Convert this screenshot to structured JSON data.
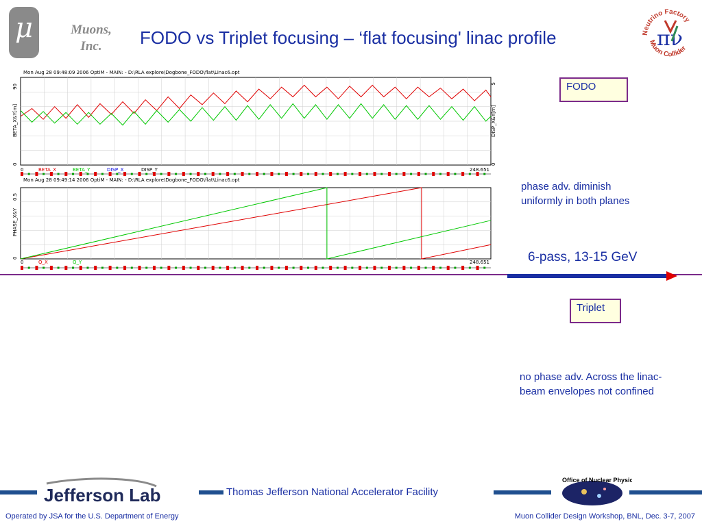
{
  "header": {
    "mu_symbol": "μ",
    "company_line1": "Muons,",
    "company_line2": "Inc.",
    "title": "FODO vs Triplet focusing – ‘flat focusing' linac profile",
    "logo_text_top": "Neutrino Factory",
    "logo_text_bottom": "Muon Collider",
    "logo_symbol": "πν"
  },
  "plots": {
    "top": {
      "header": "Mon Aug 28 09:48:09 2006    OptiM - MAIN: - D:\\RLA explore\\Dogbone_FODO\\flat\\Linac6.opt",
      "y_left_label": "BETA_X&Y[m]",
      "y_right_label": "DISP_X&Y[m]",
      "y_left_max": "90",
      "y_right_max": "5",
      "y_min": "0",
      "x_start": "0",
      "x_end": "248.651",
      "legend": [
        {
          "label": "BETA_X",
          "color": "#e00000"
        },
        {
          "label": "BETA_Y",
          "color": "#00c800"
        },
        {
          "label": "DISP_X",
          "color": "#0000e0"
        },
        {
          "label": "DISP_Y",
          "color": "#000000"
        }
      ]
    },
    "bottom": {
      "header": "Mon Aug 28 09:49:14 2006    OptiM - MAIN: - D:\\RLA explore\\Dogbone_FODO\\flat\\Linac6.opt",
      "y_left_label": "PHASE_X&Y",
      "y_left_max": "0.5",
      "y_min": "0",
      "x_start": "0",
      "x_end": "248.651",
      "legend": [
        {
          "label": "Q_X",
          "color": "#e00000"
        },
        {
          "label": "Q_Y",
          "color": "#00c800"
        }
      ]
    }
  },
  "chart_data": [
    {
      "type": "line",
      "title": "Mon Aug 28 09:48:09 2006    OptiM - MAIN: - D:\\RLA explore\\Dogbone_FODO\\flat\\Linac6.opt",
      "xlabel": "",
      "ylabel": "BETA_X&Y[m]",
      "y2label": "DISP_X&Y[m]",
      "xlim": [
        0,
        248.651
      ],
      "ylim": [
        0,
        90
      ],
      "y2lim": [
        0,
        5
      ],
      "series": [
        {
          "name": "BETA_X",
          "color": "#e00000",
          "x": [
            0,
            6,
            12,
            18,
            24,
            30,
            36,
            42,
            48,
            54,
            60,
            66,
            72,
            78,
            84,
            90,
            96,
            102,
            108,
            114,
            120,
            126,
            132,
            138,
            144,
            150,
            156,
            162,
            168,
            174,
            180,
            186,
            192,
            198,
            204,
            210,
            216,
            222,
            228,
            234,
            240,
            246,
            248.651
          ],
          "values": [
            50,
            58,
            47,
            60,
            48,
            62,
            49,
            63,
            52,
            65,
            53,
            67,
            56,
            70,
            58,
            72,
            62,
            74,
            63,
            76,
            65,
            78,
            68,
            80,
            70,
            82,
            70,
            80,
            68,
            81,
            70,
            82,
            70,
            80,
            68,
            80,
            70,
            79,
            68,
            78,
            66,
            77,
            70
          ]
        },
        {
          "name": "BETA_Y",
          "color": "#00c800",
          "x": [
            0,
            6,
            12,
            18,
            24,
            30,
            36,
            42,
            48,
            54,
            60,
            66,
            72,
            78,
            84,
            90,
            96,
            102,
            108,
            114,
            120,
            126,
            132,
            138,
            144,
            150,
            156,
            162,
            168,
            174,
            180,
            186,
            192,
            198,
            204,
            210,
            216,
            222,
            228,
            234,
            240,
            246,
            248.651
          ],
          "values": [
            56,
            44,
            55,
            43,
            54,
            42,
            54,
            42,
            53,
            41,
            55,
            42,
            56,
            44,
            57,
            45,
            59,
            46,
            60,
            46,
            61,
            47,
            62,
            48,
            63,
            48,
            62,
            47,
            62,
            48,
            63,
            48,
            62,
            47,
            61,
            47,
            61,
            47,
            60,
            46,
            60,
            45,
            50
          ]
        }
      ]
    },
    {
      "type": "line",
      "title": "Mon Aug 28 09:49:14 2006    OptiM - MAIN: - D:\\RLA explore\\Dogbone_FODO\\flat\\Linac6.opt",
      "xlabel": "",
      "ylabel": "PHASE_X&Y",
      "xlim": [
        0,
        248.651
      ],
      "ylim": [
        0,
        0.5
      ],
      "series": [
        {
          "name": "Q_X",
          "color": "#e00000",
          "x": [
            0,
            212,
            212,
            248.651
          ],
          "values": [
            0,
            0.5,
            0,
            0.1
          ]
        },
        {
          "name": "Q_Y",
          "color": "#00c800",
          "x": [
            0,
            162,
            162,
            248.651
          ],
          "values": [
            0,
            0.5,
            0,
            0.27
          ]
        }
      ]
    }
  ],
  "annotations": {
    "fodo_box": "FODO",
    "fodo_note_line1": "phase adv. diminish",
    "fodo_note_line2": "uniformly in both planes",
    "energy": "6-pass, 13-15 GeV",
    "triplet_box": "Triplet",
    "triplet_note_line1": "no phase adv. Across the linac-",
    "triplet_note_line2": "beam envelopes not confined"
  },
  "footer": {
    "jlab_name": "Jefferson Lab",
    "facility": "Thomas Jefferson National Accelerator Facility",
    "onp_text": "Office of Nuclear Physics",
    "left": "Operated by JSA for the U.S. Department of Energy",
    "right": "Muon Collider Design Workshop, BNL, Dec. 3-7, 2007"
  },
  "colors": {
    "title_blue": "#1a2fa3",
    "accent_purple": "#7b2a8a",
    "box_fill": "#ffffe0",
    "footer_bar": "#1f4f8f",
    "beta_x": "#e00000",
    "beta_y": "#00c800"
  }
}
